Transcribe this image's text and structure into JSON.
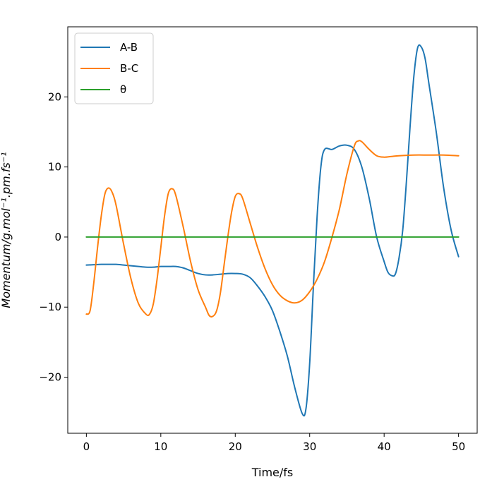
{
  "chart_data": {
    "type": "line",
    "xlabel": "Time/fs",
    "ylabel": "Momentum/g.mol⁻¹.pm.fs⁻¹",
    "xlim": [
      -2.5,
      52.5
    ],
    "ylim": [
      -28,
      30
    ],
    "xticks": [
      0,
      10,
      20,
      30,
      40,
      50
    ],
    "yticks": [
      -20,
      -10,
      0,
      10,
      20
    ],
    "grid": false,
    "legend_position": "top-left",
    "series": [
      {
        "name": "A-B",
        "color": "#1f77b4",
        "points": [
          [
            0,
            -4
          ],
          [
            1,
            -3.95
          ],
          [
            2,
            -3.9
          ],
          [
            3,
            -3.9
          ],
          [
            4,
            -3.9
          ],
          [
            5,
            -4
          ],
          [
            6,
            -4.1
          ],
          [
            7,
            -4.2
          ],
          [
            8,
            -4.3
          ],
          [
            9,
            -4.3
          ],
          [
            10,
            -4.2
          ],
          [
            11,
            -4.2
          ],
          [
            12,
            -4.2
          ],
          [
            13,
            -4.4
          ],
          [
            14,
            -4.8
          ],
          [
            15,
            -5.2
          ],
          [
            16,
            -5.4
          ],
          [
            17,
            -5.4
          ],
          [
            18,
            -5.3
          ],
          [
            19,
            -5.2
          ],
          [
            20,
            -5.2
          ],
          [
            21,
            -5.3
          ],
          [
            22,
            -5.8
          ],
          [
            23,
            -7
          ],
          [
            24,
            -8.5
          ],
          [
            25,
            -10.5
          ],
          [
            26,
            -13.5
          ],
          [
            27,
            -17
          ],
          [
            28,
            -21.5
          ],
          [
            29,
            -25.2
          ],
          [
            29.5,
            -24.5
          ],
          [
            30,
            -18
          ],
          [
            30.5,
            -7
          ],
          [
            31,
            3
          ],
          [
            31.5,
            10
          ],
          [
            32,
            12.5
          ],
          [
            33,
            12.5
          ],
          [
            34,
            13
          ],
          [
            35,
            13.1
          ],
          [
            36,
            12.5
          ],
          [
            37,
            10
          ],
          [
            38,
            5.5
          ],
          [
            39,
            0
          ],
          [
            40,
            -3.5
          ],
          [
            40.5,
            -5
          ],
          [
            41,
            -5.5
          ],
          [
            41.5,
            -5.3
          ],
          [
            42,
            -3
          ],
          [
            42.5,
            1
          ],
          [
            43,
            8
          ],
          [
            43.5,
            16
          ],
          [
            44,
            23
          ],
          [
            44.5,
            27
          ],
          [
            45,
            27.1
          ],
          [
            45.5,
            25.5
          ],
          [
            46,
            22
          ],
          [
            47,
            15
          ],
          [
            48,
            7
          ],
          [
            49,
            1
          ],
          [
            50,
            -2.8
          ]
        ]
      },
      {
        "name": "B-C",
        "color": "#ff7f0e",
        "points": [
          [
            0,
            -11
          ],
          [
            0.5,
            -10.5
          ],
          [
            1,
            -6.5
          ],
          [
            1.5,
            -1.5
          ],
          [
            2,
            3
          ],
          [
            2.5,
            6.2
          ],
          [
            3,
            7
          ],
          [
            3.5,
            6.3
          ],
          [
            4,
            4.5
          ],
          [
            5,
            -1
          ],
          [
            6,
            -6
          ],
          [
            7,
            -9.5
          ],
          [
            8,
            -11
          ],
          [
            8.5,
            -11
          ],
          [
            9,
            -9.5
          ],
          [
            9.5,
            -6
          ],
          [
            10,
            -1.5
          ],
          [
            10.5,
            3
          ],
          [
            11,
            6.2
          ],
          [
            11.5,
            6.9
          ],
          [
            12,
            6
          ],
          [
            13,
            1.5
          ],
          [
            14,
            -3.5
          ],
          [
            15,
            -7.5
          ],
          [
            16,
            -10
          ],
          [
            16.5,
            -11.2
          ],
          [
            17,
            -11.3
          ],
          [
            17.5,
            -10.5
          ],
          [
            18,
            -8
          ],
          [
            18.5,
            -4
          ],
          [
            19,
            0
          ],
          [
            19.5,
            3.5
          ],
          [
            20,
            5.8
          ],
          [
            20.5,
            6.2
          ],
          [
            21,
            5.5
          ],
          [
            22,
            2
          ],
          [
            23,
            -1.5
          ],
          [
            24,
            -4.5
          ],
          [
            25,
            -6.8
          ],
          [
            26,
            -8.3
          ],
          [
            27,
            -9.1
          ],
          [
            28,
            -9.4
          ],
          [
            29,
            -9
          ],
          [
            30,
            -7.8
          ],
          [
            31,
            -6
          ],
          [
            32,
            -3.5
          ],
          [
            33,
            0
          ],
          [
            34,
            4
          ],
          [
            35,
            9
          ],
          [
            36,
            13
          ],
          [
            36.5,
            13.7
          ],
          [
            37,
            13.6
          ],
          [
            38,
            12.5
          ],
          [
            39,
            11.6
          ],
          [
            40,
            11.4
          ],
          [
            41,
            11.5
          ],
          [
            42,
            11.6
          ],
          [
            44,
            11.7
          ],
          [
            46,
            11.7
          ],
          [
            48,
            11.7
          ],
          [
            50,
            11.6
          ]
        ]
      },
      {
        "name": "θ",
        "color": "#2ca02c",
        "points": [
          [
            0,
            0
          ],
          [
            50,
            0
          ]
        ]
      }
    ]
  }
}
